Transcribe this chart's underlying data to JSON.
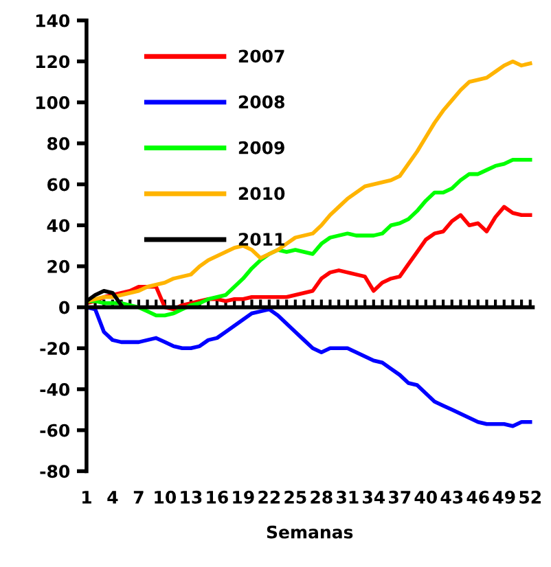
{
  "chart_data": {
    "type": "line",
    "xlabel": "Semanas",
    "categories": [
      "1",
      null,
      null,
      "4",
      null,
      null,
      "7",
      null,
      null,
      "10",
      null,
      null,
      "13",
      null,
      null,
      "16",
      null,
      null,
      "19",
      null,
      null,
      "22",
      null,
      null,
      "25",
      null,
      null,
      "28",
      null,
      null,
      "31",
      null,
      null,
      "34",
      null,
      null,
      "37",
      null,
      null,
      "40",
      null,
      null,
      "43",
      null,
      null,
      "46",
      null,
      null,
      "49",
      null,
      null,
      "52"
    ],
    "ylim": [
      -80,
      140
    ],
    "yticks": [
      -80,
      -60,
      -40,
      -20,
      0,
      20,
      40,
      60,
      80,
      100,
      120,
      140
    ],
    "legend": "top left",
    "marker": "none",
    "line_style": "solid",
    "series": [
      {
        "name": "2007",
        "color": "#ff0000",
        "values": [
          2,
          3,
          5,
          6,
          7,
          8,
          10,
          10,
          10,
          0,
          -1,
          1,
          2,
          3,
          4,
          4,
          3,
          4,
          4,
          5,
          5,
          5,
          5,
          5,
          6,
          7,
          8,
          14,
          17,
          18,
          17,
          16,
          15,
          8,
          12,
          14,
          15,
          21,
          27,
          33,
          36,
          37,
          42,
          45,
          40,
          41,
          37,
          44,
          49,
          46,
          45,
          45
        ]
      },
      {
        "name": "2008",
        "color": "#0000ff",
        "values": [
          0,
          -1,
          -12,
          -16,
          -17,
          -17,
          -17,
          -16,
          -15,
          -17,
          -19,
          -20,
          -20,
          -19,
          -16,
          -15,
          -12,
          -9,
          -6,
          -3,
          -2,
          -1,
          -4,
          -8,
          -12,
          -16,
          -20,
          -22,
          -20,
          -20,
          -20,
          -22,
          -24,
          -26,
          -27,
          -30,
          -33,
          -37,
          -38,
          -42,
          -46,
          -48,
          -50,
          -52,
          -54,
          -56,
          -57,
          -57,
          -57,
          -58,
          -56,
          -56
        ]
      },
      {
        "name": "2009",
        "color": "#00ff00",
        "values": [
          3,
          3,
          2,
          2,
          2,
          1,
          0,
          -2,
          -4,
          -4,
          -3,
          -1,
          1,
          2,
          4,
          5,
          6,
          10,
          14,
          19,
          23,
          26,
          28,
          27,
          28,
          27,
          26,
          31,
          34,
          35,
          36,
          35,
          35,
          35,
          36,
          40,
          41,
          43,
          47,
          52,
          56,
          56,
          58,
          62,
          65,
          65,
          67,
          69,
          70,
          72,
          72,
          72
        ]
      },
      {
        "name": "2010",
        "color": "#ffb400",
        "values": [
          3,
          4,
          5,
          5,
          6,
          7,
          8,
          10,
          11,
          12,
          14,
          15,
          16,
          20,
          23,
          25,
          27,
          29,
          30,
          28,
          24,
          26,
          28,
          31,
          34,
          35,
          36,
          40,
          45,
          49,
          53,
          56,
          59,
          60,
          61,
          62,
          64,
          70,
          76,
          83,
          90,
          96,
          101,
          106,
          110,
          111,
          112,
          115,
          118,
          120,
          118,
          119
        ]
      },
      {
        "name": "2011",
        "color": "#000000",
        "values": [
          3,
          6,
          8,
          7,
          1,
          null,
          null,
          null,
          null,
          null,
          null,
          null,
          null,
          null,
          null,
          null,
          null,
          null,
          null,
          null,
          null,
          null,
          null,
          null,
          null,
          null,
          null,
          null,
          null,
          null,
          null,
          null,
          null,
          null,
          null,
          null,
          null,
          null,
          null,
          null,
          null,
          null,
          null,
          null,
          null,
          null,
          null,
          null,
          null,
          null,
          null,
          null
        ]
      }
    ]
  }
}
